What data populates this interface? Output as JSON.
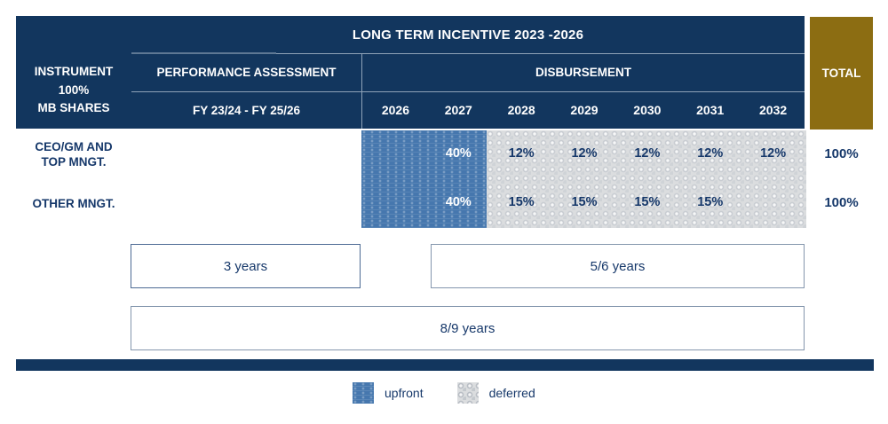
{
  "table": {
    "title": "LONG TERM INCENTIVE 2023 -2026",
    "instrument_header": [
      "INSTRUMENT",
      "100%",
      "MB SHARES"
    ],
    "performance_header": "PERFORMANCE ASSESSMENT",
    "performance_period": "FY 23/24 - FY 25/26",
    "disbursement_header": "DISBURSEMENT",
    "years": [
      "2026",
      "2027",
      "2028",
      "2029",
      "2030",
      "2031",
      "2032"
    ],
    "total_header": "TOTAL",
    "rows": [
      {
        "label_line1": "CEO/GM AND",
        "label_line2": "TOP MNGT.",
        "cells": [
          "",
          "40%",
          "12%",
          "12%",
          "12%",
          "12%",
          "12%"
        ],
        "total": "100%"
      },
      {
        "label_line1": "OTHER MNGT.",
        "label_line2": "",
        "cells": [
          "",
          "40%",
          "15%",
          "15%",
          "15%",
          "15%",
          ""
        ],
        "total": "100%"
      }
    ]
  },
  "timeline": {
    "performance_box": "3 years",
    "deferred_box": "5/6 years",
    "total_box": "8/9 years"
  },
  "legend": {
    "upfront": "upfront",
    "deferred": "deferred"
  },
  "colors": {
    "navy": "#12365E",
    "gold": "#8C6D12",
    "upfront_blue": "#4677AE",
    "deferred_gray": "#DBDDDF",
    "text_navy": "#16386A"
  }
}
